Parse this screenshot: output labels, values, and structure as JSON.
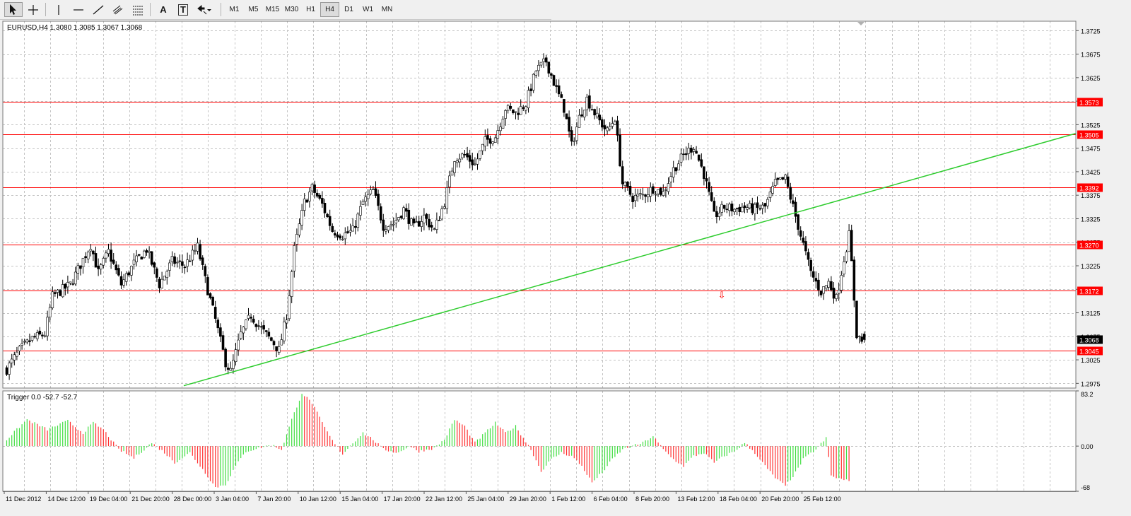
{
  "toolbar": {
    "tools": [
      {
        "name": "cursor",
        "icon": "cursor-arrow-icon",
        "active": true
      },
      {
        "name": "crosshair",
        "icon": "crosshair-icon"
      },
      {
        "name": "vertical-line",
        "icon": "vertical-line-icon"
      },
      {
        "name": "horizontal-line",
        "icon": "horizontal-line-icon"
      },
      {
        "name": "trend-line",
        "icon": "trend-line-icon"
      },
      {
        "name": "equidistant-channel",
        "icon": "equidistant-channel-icon"
      },
      {
        "name": "fibonacci",
        "icon": "fibonacci-icon"
      },
      {
        "name": "text",
        "icon": "text-icon",
        "glyph": "A"
      },
      {
        "name": "text-label",
        "icon": "text-label-icon",
        "glyph": "T"
      },
      {
        "name": "arrows",
        "icon": "arrows-dropdown-icon"
      }
    ],
    "timeframes": [
      "M1",
      "M5",
      "M15",
      "M30",
      "H1",
      "H4",
      "D1",
      "W1",
      "MN"
    ],
    "active_timeframe": "H4"
  },
  "colors": {
    "bull": "#00b400",
    "bear": "#e00000",
    "grid": "#c4c4c4",
    "level_line": "#ff0000",
    "trendline": "#2ecc2e",
    "price_label_bg": "#000000",
    "osc_pos": "#40dd40",
    "osc_neg": "#ff3030"
  },
  "chart_data": [
    {
      "type": "candlestick",
      "title": "EURUSD,H4  1.3080 1.3085 1.3067 1.3068",
      "symbol": "EURUSD",
      "timeframe": "H4",
      "ohlc_current": {
        "open": 1.308,
        "high": 1.3085,
        "low": 1.3067,
        "close": 1.3068
      },
      "ylim": [
        1.2965,
        1.3745
      ],
      "y_ticks": [
        1.2975,
        1.3025,
        1.3075,
        1.3125,
        1.3175,
        1.3225,
        1.3275,
        1.3325,
        1.3375,
        1.3425,
        1.3475,
        1.3525,
        1.3575,
        1.3625,
        1.3675,
        1.3725
      ],
      "y_tick_labels": [
        "1.2975",
        "1.3025",
        "1.3075",
        "1.3125",
        "1.3175",
        "1.3225",
        "1.3275",
        "1.3325",
        "1.3375",
        "1.3425",
        "1.3475",
        "1.3525",
        "1.3575",
        "1.3625",
        "1.3675",
        "1.3725"
      ],
      "grid": true,
      "x_tick_labels": [
        "11 Dec 2012",
        "14 Dec 12:00",
        "19 Dec 04:00",
        "21 Dec 20:00",
        "28 Dec 00:00",
        "3 Jan 04:00",
        "7 Jan 20:00",
        "10 Jan 12:00",
        "15 Jan 04:00",
        "17 Jan 20:00",
        "22 Jan 12:00",
        "25 Jan 04:00",
        "29 Jan 20:00",
        "1 Feb 12:00",
        "6 Feb 04:00",
        "8 Feb 20:00",
        "13 Feb 12:00",
        "18 Feb 04:00",
        "20 Feb 20:00",
        "25 Feb 12:00"
      ],
      "close_anchors": [
        [
          0,
          1.3005
        ],
        [
          5,
          1.3045
        ],
        [
          10,
          1.307
        ],
        [
          15,
          1.308
        ],
        [
          18,
          1.316
        ],
        [
          25,
          1.3185
        ],
        [
          33,
          1.327
        ],
        [
          36,
          1.321
        ],
        [
          40,
          1.3255
        ],
        [
          45,
          1.3185
        ],
        [
          50,
          1.323
        ],
        [
          55,
          1.326
        ],
        [
          60,
          1.3185
        ],
        [
          65,
          1.3235
        ],
        [
          70,
          1.3225
        ],
        [
          75,
          1.3265
        ],
        [
          78,
          1.3195
        ],
        [
          82,
          1.311
        ],
        [
          86,
          1.302
        ],
        [
          88,
          1.3
        ],
        [
          92,
          1.308
        ],
        [
          96,
          1.312
        ],
        [
          100,
          1.309
        ],
        [
          105,
          1.306
        ],
        [
          107,
          1.3045
        ],
        [
          110,
          1.312
        ],
        [
          113,
          1.326
        ],
        [
          117,
          1.336
        ],
        [
          120,
          1.339
        ],
        [
          124,
          1.3355
        ],
        [
          128,
          1.33
        ],
        [
          132,
          1.329
        ],
        [
          136,
          1.33
        ],
        [
          140,
          1.336
        ],
        [
          144,
          1.3385
        ],
        [
          148,
          1.331
        ],
        [
          152,
          1.3315
        ],
        [
          156,
          1.3345
        ],
        [
          160,
          1.3305
        ],
        [
          164,
          1.333
        ],
        [
          168,
          1.33
        ],
        [
          172,
          1.336
        ],
        [
          176,
          1.3455
        ],
        [
          180,
          1.346
        ],
        [
          184,
          1.344
        ],
        [
          188,
          1.349
        ],
        [
          192,
          1.35
        ],
        [
          196,
          1.356
        ],
        [
          200,
          1.355
        ],
        [
          204,
          1.357
        ],
        [
          208,
          1.364
        ],
        [
          212,
          1.366
        ],
        [
          216,
          1.36
        ],
        [
          219,
          1.356
        ],
        [
          222,
          1.348
        ],
        [
          225,
          1.354
        ],
        [
          228,
          1.358
        ],
        [
          232,
          1.354
        ],
        [
          236,
          1.351
        ],
        [
          239,
          1.354
        ],
        [
          242,
          1.34
        ],
        [
          246,
          1.337
        ],
        [
          250,
          1.3375
        ],
        [
          254,
          1.339
        ],
        [
          258,
          1.338
        ],
        [
          262,
          1.343
        ],
        [
          266,
          1.346
        ],
        [
          270,
          1.348
        ],
        [
          274,
          1.342
        ],
        [
          278,
          1.333
        ],
        [
          282,
          1.335
        ],
        [
          286,
          1.3345
        ],
        [
          290,
          1.335
        ],
        [
          294,
          1.3345
        ],
        [
          298,
          1.335
        ],
        [
          302,
          1.34
        ],
        [
          306,
          1.341
        ],
        [
          310,
          1.333
        ],
        [
          313,
          1.327
        ],
        [
          316,
          1.321
        ],
        [
          320,
          1.317
        ],
        [
          323,
          1.319
        ],
        [
          326,
          1.3155
        ],
        [
          329,
          1.324
        ],
        [
          331,
          1.329
        ],
        [
          332,
          1.323
        ],
        [
          334,
          1.308
        ],
        [
          336,
          1.3065
        ],
        [
          337,
          1.3068
        ]
      ],
      "levels": [
        1.3573,
        1.3505,
        1.3392,
        1.327,
        1.3172,
        1.3045
      ],
      "level_labels": [
        "1.3573",
        "1.3505",
        "1.3392",
        "1.3270",
        "1.3172",
        "1.3045"
      ],
      "current_price_label": "1.3068",
      "trendline": {
        "bar_start": 70,
        "price_start": 1.297,
        "bar_end": 400,
        "price_end": 1.3475
      },
      "marker": {
        "bar": 281,
        "price": 1.3168,
        "icon": "sell-arrow-icon"
      }
    },
    {
      "type": "histogram",
      "title": "Trigger 0.0 -52.7 -52.7",
      "name": "Trigger",
      "values_current": [
        0.0,
        -52.7,
        -52.7
      ],
      "ylim": [
        -68,
        83.2
      ],
      "y_ticks": [
        83.2,
        0.0,
        -68
      ],
      "y_tick_labels": [
        "83.2",
        "0.00",
        "-68"
      ],
      "value_anchors": [
        [
          0,
          10
        ],
        [
          8,
          40
        ],
        [
          16,
          25
        ],
        [
          24,
          38
        ],
        [
          30,
          20
        ],
        [
          34,
          35
        ],
        [
          38,
          25
        ],
        [
          44,
          -5
        ],
        [
          50,
          -18
        ],
        [
          54,
          -5
        ],
        [
          57,
          5
        ],
        [
          62,
          -10
        ],
        [
          66,
          -25
        ],
        [
          72,
          -10
        ],
        [
          78,
          -40
        ],
        [
          82,
          -62
        ],
        [
          86,
          -58
        ],
        [
          90,
          -30
        ],
        [
          94,
          -8
        ],
        [
          100,
          -2
        ],
        [
          104,
          2
        ],
        [
          108,
          -5
        ],
        [
          112,
          40
        ],
        [
          116,
          80
        ],
        [
          120,
          65
        ],
        [
          124,
          35
        ],
        [
          128,
          8
        ],
        [
          132,
          -12
        ],
        [
          136,
          5
        ],
        [
          140,
          20
        ],
        [
          144,
          10
        ],
        [
          148,
          -5
        ],
        [
          154,
          -10
        ],
        [
          158,
          0
        ],
        [
          162,
          -8
        ],
        [
          168,
          -3
        ],
        [
          172,
          10
        ],
        [
          176,
          40
        ],
        [
          180,
          30
        ],
        [
          184,
          5
        ],
        [
          188,
          20
        ],
        [
          192,
          35
        ],
        [
          196,
          20
        ],
        [
          200,
          30
        ],
        [
          206,
          -5
        ],
        [
          210,
          -38
        ],
        [
          214,
          -20
        ],
        [
          218,
          -10
        ],
        [
          222,
          -15
        ],
        [
          226,
          -30
        ],
        [
          230,
          -55
        ],
        [
          234,
          -40
        ],
        [
          238,
          -20
        ],
        [
          242,
          -5
        ],
        [
          246,
          0
        ],
        [
          250,
          5
        ],
        [
          254,
          15
        ],
        [
          258,
          -5
        ],
        [
          262,
          -20
        ],
        [
          266,
          -30
        ],
        [
          270,
          -15
        ],
        [
          274,
          -10
        ],
        [
          278,
          -25
        ],
        [
          282,
          -15
        ],
        [
          286,
          -8
        ],
        [
          290,
          5
        ],
        [
          294,
          -10
        ],
        [
          298,
          -30
        ],
        [
          302,
          -48
        ],
        [
          306,
          -60
        ],
        [
          310,
          -40
        ],
        [
          313,
          -20
        ],
        [
          318,
          -5
        ],
        [
          322,
          12
        ],
        [
          324,
          -45
        ],
        [
          328,
          -50
        ],
        [
          331,
          -52.7
        ]
      ]
    }
  ]
}
